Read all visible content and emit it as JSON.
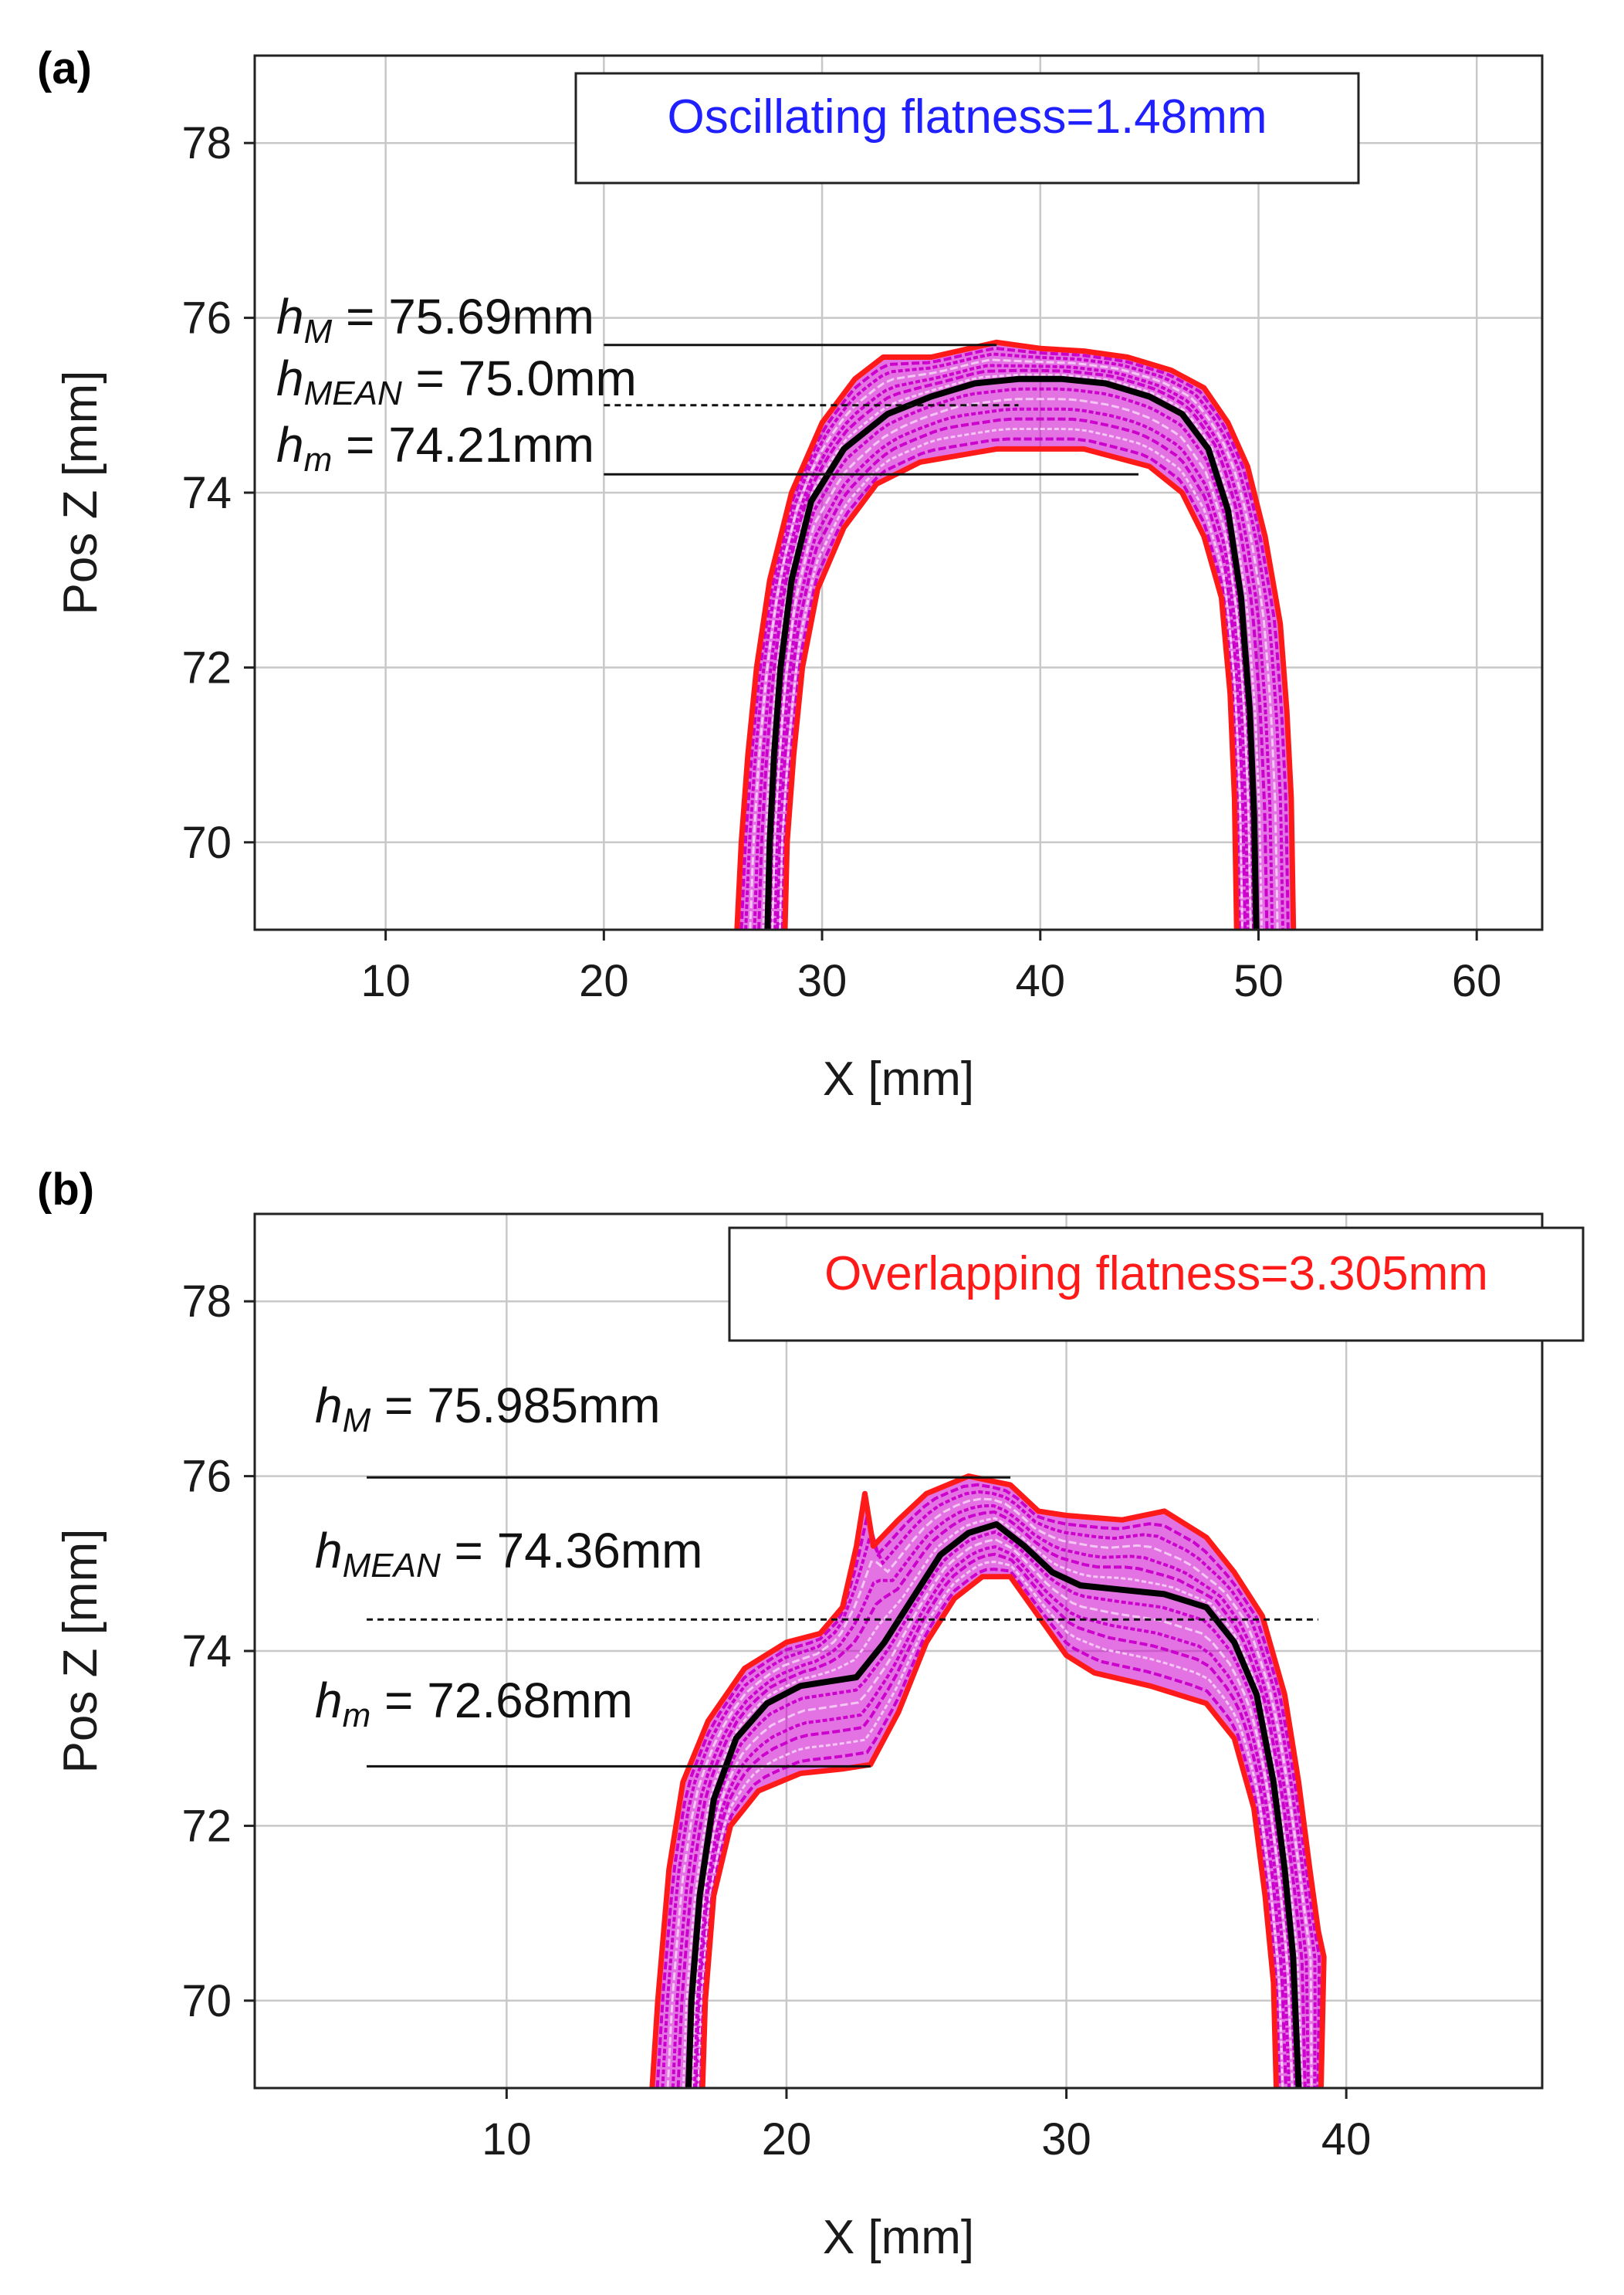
{
  "chart_data": [
    {
      "panel_label": "(a)",
      "type": "line",
      "xlabel": "X [mm]",
      "ylabel": "Pos Z [mm]",
      "xlim": [
        4,
        63
      ],
      "ylim": [
        69,
        79
      ],
      "xticks": [
        "10",
        "20",
        "30",
        "40",
        "50",
        "60"
      ],
      "yticks": [
        "70",
        "72",
        "74",
        "76",
        "78"
      ],
      "grid": true,
      "legend_box": {
        "text": "Oscillating flatness=1.48mm",
        "color": "#2020ff",
        "placement": "top-center"
      },
      "colors": {
        "envelope": "#ff1a1a",
        "traces": "#cc00cc",
        "mean_profile": "#000000"
      },
      "annotations": {
        "h_max": {
          "sym": "h",
          "sub": "M",
          "rest": " = 75.69mm",
          "value": 75.69,
          "x_range": [
            20,
            38
          ]
        },
        "h_mean": {
          "sym": "h",
          "sub": "MEAN",
          "rest": " = 75.0mm",
          "value": 75.0,
          "x_range": [
            20,
            39
          ]
        },
        "h_min": {
          "sym": "h",
          "sub": "m",
          "rest": " = 74.21mm",
          "value": 74.21,
          "x_range": [
            20,
            44.5
          ]
        }
      },
      "series": [
        {
          "name": "upper envelope",
          "points": [
            [
              26.1,
              69
            ],
            [
              26.3,
              70
            ],
            [
              26.6,
              71
            ],
            [
              27,
              72
            ],
            [
              27.6,
              73
            ],
            [
              28.6,
              74
            ],
            [
              30,
              74.8
            ],
            [
              31.5,
              75.3
            ],
            [
              32.8,
              75.55
            ],
            [
              35,
              75.55
            ],
            [
              38,
              75.72
            ],
            [
              40,
              75.65
            ],
            [
              42,
              75.62
            ],
            [
              44,
              75.55
            ],
            [
              46,
              75.4
            ],
            [
              47.5,
              75.2
            ],
            [
              48.6,
              74.8
            ],
            [
              49.5,
              74.3
            ],
            [
              50.3,
              73.5
            ],
            [
              51,
              72.5
            ],
            [
              51.3,
              71.5
            ],
            [
              51.5,
              70.5
            ],
            [
              51.6,
              69
            ]
          ]
        },
        {
          "name": "mean profile",
          "points": [
            [
              27.5,
              69
            ],
            [
              27.6,
              70
            ],
            [
              27.8,
              71
            ],
            [
              28.1,
              72
            ],
            [
              28.6,
              73
            ],
            [
              29.5,
              73.9
            ],
            [
              31,
              74.5
            ],
            [
              33,
              74.9
            ],
            [
              35,
              75.1
            ],
            [
              37,
              75.25
            ],
            [
              39,
              75.3
            ],
            [
              41,
              75.3
            ],
            [
              43,
              75.25
            ],
            [
              45,
              75.1
            ],
            [
              46.5,
              74.9
            ],
            [
              47.7,
              74.5
            ],
            [
              48.6,
              73.8
            ],
            [
              49.2,
              72.8
            ],
            [
              49.6,
              71.5
            ],
            [
              49.8,
              70.3
            ],
            [
              49.9,
              69
            ]
          ]
        },
        {
          "name": "lower envelope",
          "points": [
            [
              28.3,
              69
            ],
            [
              28.4,
              70
            ],
            [
              28.7,
              71
            ],
            [
              29.1,
              72
            ],
            [
              29.8,
              72.9
            ],
            [
              31,
              73.6
            ],
            [
              32.5,
              74.1
            ],
            [
              34.5,
              74.35
            ],
            [
              38,
              74.5
            ],
            [
              42,
              74.5
            ],
            [
              45,
              74.3
            ],
            [
              46.5,
              74.0
            ],
            [
              47.5,
              73.5
            ],
            [
              48.3,
              72.8
            ],
            [
              48.7,
              71.7
            ],
            [
              48.9,
              70.5
            ],
            [
              49,
              69
            ]
          ]
        }
      ]
    },
    {
      "panel_label": "(b)",
      "type": "line",
      "xlabel": "X [mm]",
      "ylabel": "Pos Z [mm]",
      "xlim": [
        1,
        47
      ],
      "ylim": [
        69,
        79
      ],
      "xticks": [
        "10",
        "20",
        "30",
        "40"
      ],
      "yticks": [
        "70",
        "72",
        "74",
        "76",
        "78"
      ],
      "grid": true,
      "legend_box": {
        "text": "Overlapping flatness=3.305mm",
        "color": "#ff1a1a",
        "placement": "top-right"
      },
      "colors": {
        "envelope": "#ff1a1a",
        "traces": "#cc00cc",
        "mean_profile": "#000000"
      },
      "annotations": {
        "h_max": {
          "sym": "h",
          "sub": "M",
          "rest": " = 75.985mm",
          "value": 75.985,
          "x_range": [
            5,
            28
          ]
        },
        "h_mean": {
          "sym": "h",
          "sub": "MEAN",
          "rest": " = 74.36mm",
          "value": 74.36,
          "x_range": [
            5,
            39
          ]
        },
        "h_min": {
          "sym": "h",
          "sub": "m",
          "rest": " = 72.68mm",
          "value": 72.68,
          "x_range": [
            5,
            23
          ]
        }
      },
      "series": [
        {
          "name": "upper envelope",
          "points": [
            [
              15.2,
              69
            ],
            [
              15.4,
              70
            ],
            [
              15.8,
              71.5
            ],
            [
              16.3,
              72.5
            ],
            [
              17.2,
              73.2
            ],
            [
              18.5,
              73.8
            ],
            [
              20,
              74.1
            ],
            [
              21.2,
              74.2
            ],
            [
              22,
              74.5
            ],
            [
              22.5,
              75.2
            ],
            [
              22.8,
              75.8
            ],
            [
              23.1,
              75.2
            ],
            [
              24,
              75.5
            ],
            [
              25,
              75.8
            ],
            [
              26.5,
              76
            ],
            [
              28,
              75.9
            ],
            [
              29,
              75.6
            ],
            [
              30,
              75.55
            ],
            [
              32,
              75.5
            ],
            [
              33.5,
              75.6
            ],
            [
              35,
              75.3
            ],
            [
              36,
              74.9
            ],
            [
              37,
              74.4
            ],
            [
              37.8,
              73.5
            ],
            [
              38.3,
              72.5
            ],
            [
              38.7,
              71.5
            ],
            [
              39,
              70.8
            ],
            [
              39.2,
              70.5
            ],
            [
              39.1,
              69
            ]
          ]
        },
        {
          "name": "mean profile",
          "points": [
            [
              16.5,
              69
            ],
            [
              16.6,
              70
            ],
            [
              16.9,
              71.2
            ],
            [
              17.4,
              72.3
            ],
            [
              18.2,
              73
            ],
            [
              19.3,
              73.4
            ],
            [
              20.5,
              73.6
            ],
            [
              21.5,
              73.65
            ],
            [
              22.5,
              73.7
            ],
            [
              23.5,
              74.1
            ],
            [
              24.5,
              74.6
            ],
            [
              25.5,
              75.1
            ],
            [
              26.5,
              75.35
            ],
            [
              27.5,
              75.45
            ],
            [
              28.5,
              75.2
            ],
            [
              29.5,
              74.9
            ],
            [
              30.5,
              74.75
            ],
            [
              32,
              74.7
            ],
            [
              33.5,
              74.65
            ],
            [
              35,
              74.5
            ],
            [
              36,
              74.1
            ],
            [
              36.8,
              73.5
            ],
            [
              37.4,
              72.5
            ],
            [
              37.8,
              71.5
            ],
            [
              38.1,
              70.5
            ],
            [
              38.3,
              69
            ]
          ]
        },
        {
          "name": "lower envelope",
          "points": [
            [
              17,
              69
            ],
            [
              17.1,
              70
            ],
            [
              17.4,
              71.2
            ],
            [
              18,
              72
            ],
            [
              19,
              72.4
            ],
            [
              20.5,
              72.6
            ],
            [
              22,
              72.65
            ],
            [
              23,
              72.7
            ],
            [
              24,
              73.3
            ],
            [
              25,
              74.1
            ],
            [
              26,
              74.6
            ],
            [
              27,
              74.85
            ],
            [
              28,
              74.85
            ],
            [
              29,
              74.4
            ],
            [
              30,
              73.95
            ],
            [
              31,
              73.75
            ],
            [
              33,
              73.6
            ],
            [
              35,
              73.4
            ],
            [
              36,
              73
            ],
            [
              36.7,
              72.2
            ],
            [
              37.1,
              71.2
            ],
            [
              37.4,
              70.2
            ],
            [
              37.5,
              69
            ]
          ]
        }
      ]
    }
  ]
}
